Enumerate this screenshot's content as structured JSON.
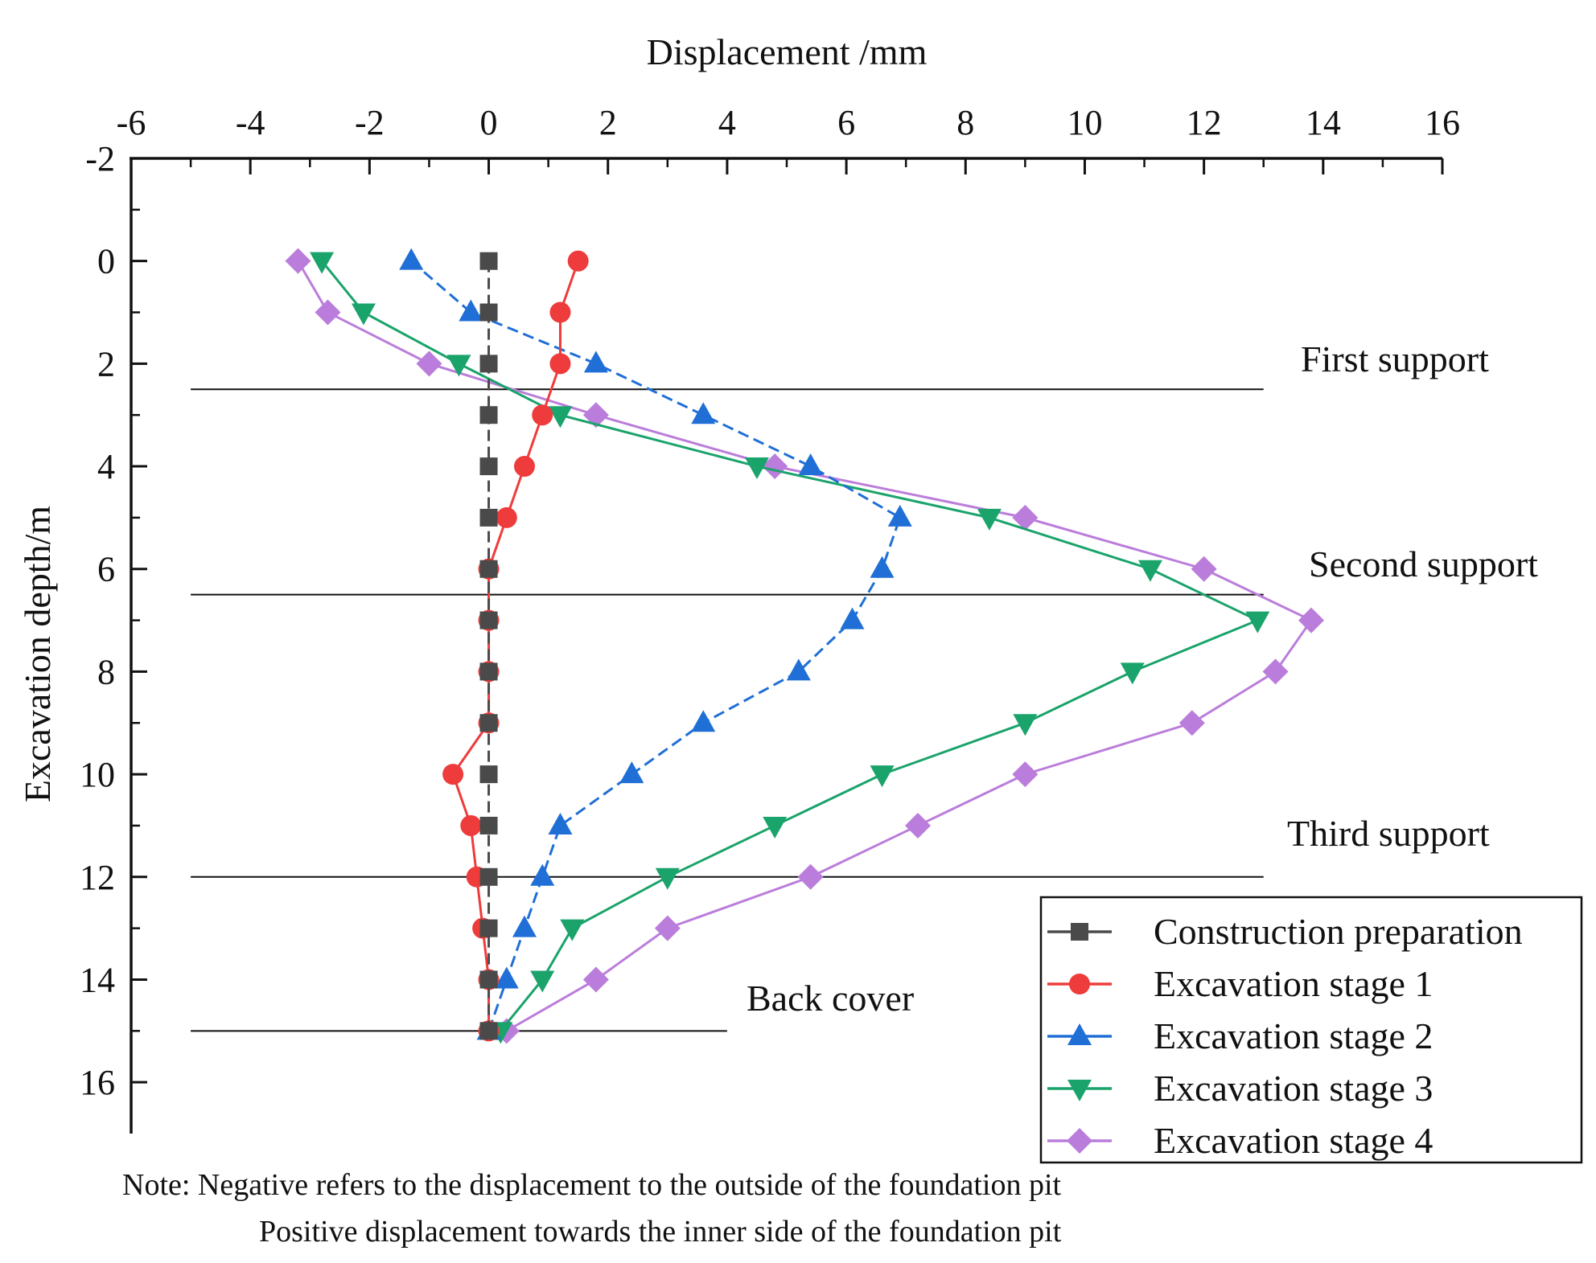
{
  "chart_data": {
    "type": "line",
    "x_axis": {
      "label": "Displacement /mm",
      "range": [
        -6,
        16
      ],
      "ticks": [
        -6,
        -4,
        -2,
        0,
        2,
        4,
        6,
        8,
        10,
        12,
        14,
        16
      ],
      "position": "top"
    },
    "y_axis": {
      "label": "Excavation depth/m",
      "range": [
        -2,
        17
      ],
      "ticks": [
        -2,
        0,
        2,
        4,
        6,
        8,
        10,
        12,
        14,
        16
      ],
      "inverted": true
    },
    "depth": [
      0,
      1,
      2,
      3,
      4,
      5,
      6,
      7,
      8,
      9,
      10,
      11,
      12,
      13,
      14,
      15
    ],
    "series": [
      {
        "name": "Construction preparation",
        "color": "#4a4a4a",
        "marker": "square",
        "values": [
          0,
          0,
          0,
          0,
          0,
          0,
          0,
          0,
          0,
          0,
          0,
          0,
          0,
          0,
          0,
          0
        ]
      },
      {
        "name": "Excavation stage 1",
        "color": "#ee3b3b",
        "marker": "circle",
        "values": [
          1.5,
          1.2,
          1.2,
          0.9,
          0.6,
          0.3,
          0.0,
          0.0,
          0.0,
          0.0,
          -0.6,
          -0.3,
          -0.2,
          -0.1,
          0.0,
          0.0
        ]
      },
      {
        "name": "Excavation stage 2",
        "color": "#1f6fd6",
        "marker": "triangle-up",
        "values": [
          -1.3,
          -0.3,
          1.8,
          3.6,
          5.4,
          6.9,
          6.6,
          6.1,
          5.2,
          3.6,
          2.4,
          1.2,
          0.9,
          0.6,
          0.3,
          0.0
        ]
      },
      {
        "name": "Excavation stage 3",
        "color": "#1aa36b",
        "marker": "triangle-down",
        "values": [
          -2.8,
          -2.1,
          -0.5,
          1.2,
          4.5,
          8.4,
          11.1,
          12.9,
          10.8,
          9.0,
          6.6,
          4.8,
          3.0,
          1.4,
          0.9,
          0.2
        ]
      },
      {
        "name": "Excavation stage 4",
        "color": "#bb7ddb",
        "marker": "diamond",
        "values": [
          -3.2,
          -2.7,
          -1.0,
          1.8,
          4.8,
          9.0,
          12.0,
          13.8,
          13.2,
          11.8,
          9.0,
          7.2,
          5.4,
          3.0,
          1.8,
          0.3
        ]
      }
    ],
    "reference_lines": [
      {
        "label": "First support",
        "depth": 2.5,
        "x_from": -5,
        "x_to": 13
      },
      {
        "label": "Second support",
        "depth": 6.5,
        "x_from": -5,
        "x_to": 13
      },
      {
        "label": "Third support",
        "depth": 12,
        "x_from": -5,
        "x_to": 13
      },
      {
        "label": "Back cover",
        "depth": 15,
        "x_from": -5,
        "x_to": 4
      }
    ],
    "legend_position": "bottom-right",
    "notes": [
      "Note: Negative refers to the displacement to the outside of the foundation pit",
      "Positive displacement towards the inner side of the foundation pit"
    ]
  }
}
